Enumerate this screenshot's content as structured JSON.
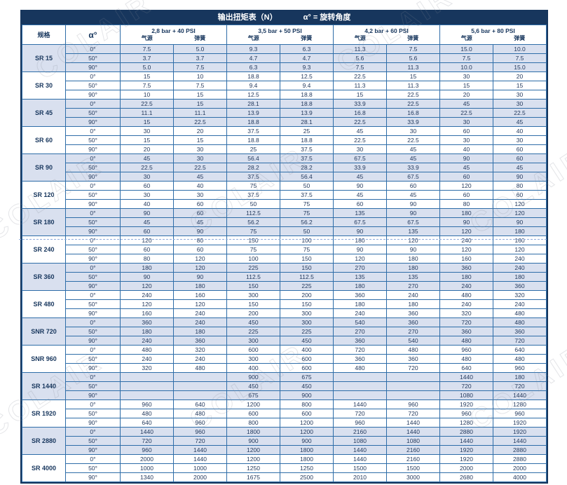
{
  "header": {
    "title": "输出扭矩表（N）",
    "subtitle": "α° = 旋转角度"
  },
  "table": {
    "spec_header": "规格",
    "alpha_header": "α°",
    "groups": [
      {
        "label": "2,8 bar + 40 PSI",
        "air": "气源",
        "spring": "弹簧"
      },
      {
        "label": "3,5 bar + 50 PSI",
        "air": "气源",
        "spring": "弹簧"
      },
      {
        "label": "4,2 bar + 60 PSI",
        "air": "气源",
        "spring": "弹簧"
      },
      {
        "label": "5,6 bar + 80 PSI",
        "air": "气源",
        "spring": "弹簧"
      }
    ],
    "rows": [
      {
        "spec": "SR 15",
        "shaded": true,
        "angles": [
          {
            "angle": "0°",
            "values": [
              "7.5",
              "5.0",
              "9.3",
              "6.3",
              "11.3",
              "7.5",
              "15.0",
              "10.0"
            ]
          },
          {
            "angle": "50°",
            "values": [
              "3.7",
              "3.7",
              "4.7",
              "4.7",
              "5.6",
              "5.6",
              "7.5",
              "7.5"
            ]
          },
          {
            "angle": "90°",
            "values": [
              "5.0",
              "7.5",
              "6.3",
              "9.3",
              "7.5",
              "11.3",
              "10.0",
              "15.0"
            ]
          }
        ]
      },
      {
        "spec": "SR 30",
        "shaded": false,
        "angles": [
          {
            "angle": "0°",
            "values": [
              "15",
              "10",
              "18.8",
              "12.5",
              "22.5",
              "15",
              "30",
              "20"
            ]
          },
          {
            "angle": "50°",
            "values": [
              "7.5",
              "7.5",
              "9.4",
              "9.4",
              "11.3",
              "11.3",
              "15",
              "15"
            ]
          },
          {
            "angle": "90°",
            "values": [
              "10",
              "15",
              "12.5",
              "18.8",
              "15",
              "22.5",
              "20",
              "30"
            ]
          }
        ]
      },
      {
        "spec": "SR 45",
        "shaded": true,
        "angles": [
          {
            "angle": "0°",
            "values": [
              "22.5",
              "15",
              "28.1",
              "18.8",
              "33.9",
              "22.5",
              "45",
              "30"
            ]
          },
          {
            "angle": "50°",
            "values": [
              "11.1",
              "11.1",
              "13.9",
              "13.9",
              "16.8",
              "16.8",
              "22.5",
              "22.5"
            ]
          },
          {
            "angle": "90°",
            "values": [
              "15",
              "22.5",
              "18.8",
              "28.1",
              "22.5",
              "33.9",
              "30",
              "45"
            ]
          }
        ]
      },
      {
        "spec": "SR 60",
        "shaded": false,
        "angles": [
          {
            "angle": "0°",
            "values": [
              "30",
              "20",
              "37.5",
              "25",
              "45",
              "30",
              "60",
              "40"
            ]
          },
          {
            "angle": "50°",
            "values": [
              "15",
              "15",
              "18.8",
              "18.8",
              "22.5",
              "22.5",
              "30",
              "30"
            ]
          },
          {
            "angle": "90°",
            "values": [
              "20",
              "30",
              "25",
              "37.5",
              "30",
              "45",
              "40",
              "60"
            ]
          }
        ]
      },
      {
        "spec": "SR 90",
        "shaded": true,
        "angles": [
          {
            "angle": "0°",
            "values": [
              "45",
              "30",
              "56.4",
              "37.5",
              "67.5",
              "45",
              "90",
              "60"
            ]
          },
          {
            "angle": "50°",
            "values": [
              "22.5",
              "22.5",
              "28.2",
              "28.2",
              "33.9",
              "33.9",
              "45",
              "45"
            ]
          },
          {
            "angle": "90°",
            "values": [
              "30",
              "45",
              "37.5",
              "56.4",
              "45",
              "67.5",
              "60",
              "90"
            ]
          }
        ]
      },
      {
        "spec": "SR 120",
        "shaded": false,
        "angles": [
          {
            "angle": "0°",
            "values": [
              "60",
              "40",
              "75",
              "50",
              "90",
              "60",
              "120",
              "80"
            ]
          },
          {
            "angle": "50°",
            "values": [
              "30",
              "30",
              "37.5",
              "37.5",
              "45",
              "45",
              "60",
              "60"
            ]
          },
          {
            "angle": "90°",
            "values": [
              "40",
              "60",
              "50",
              "75",
              "60",
              "90",
              "80",
              "120"
            ]
          }
        ]
      },
      {
        "spec": "SR 180",
        "shaded": true,
        "angles": [
          {
            "angle": "0°",
            "values": [
              "90",
              "60",
              "112.5",
              "75",
              "135",
              "90",
              "180",
              "120"
            ]
          },
          {
            "angle": "50°",
            "values": [
              "45",
              "45",
              "56.2",
              "56.2",
              "67.5",
              "67.5",
              "90",
              "90"
            ]
          },
          {
            "angle": "90°",
            "values": [
              "60",
              "90",
              "75",
              "50",
              "90",
              "135",
              "120",
              "180"
            ]
          }
        ]
      },
      {
        "spec": "SR 240",
        "shaded": false,
        "angles": [
          {
            "angle": "0°",
            "values": [
              "120",
              "80",
              "150",
              "100",
              "180",
              "120",
              "240",
              "160"
            ]
          },
          {
            "angle": "50°",
            "values": [
              "60",
              "60",
              "75",
              "75",
              "90",
              "90",
              "120",
              "120"
            ]
          },
          {
            "angle": "90°",
            "values": [
              "80",
              "120",
              "100",
              "150",
              "120",
              "180",
              "160",
              "240"
            ]
          }
        ]
      },
      {
        "spec": "SR 360",
        "shaded": true,
        "angles": [
          {
            "angle": "0°",
            "values": [
              "180",
              "120",
              "225",
              "150",
              "270",
              "180",
              "360",
              "240"
            ]
          },
          {
            "angle": "50°",
            "values": [
              "90",
              "90",
              "112.5",
              "112.5",
              "135",
              "135",
              "180",
              "180"
            ]
          },
          {
            "angle": "90°",
            "values": [
              "120",
              "180",
              "150",
              "225",
              "180",
              "270",
              "240",
              "360"
            ]
          }
        ]
      },
      {
        "spec": "SR 480",
        "shaded": false,
        "angles": [
          {
            "angle": "0°",
            "values": [
              "240",
              "160",
              "300",
              "200",
              "360",
              "240",
              "480",
              "320"
            ]
          },
          {
            "angle": "50°",
            "values": [
              "120",
              "120",
              "150",
              "150",
              "180",
              "180",
              "240",
              "240"
            ]
          },
          {
            "angle": "90°",
            "values": [
              "160",
              "240",
              "200",
              "300",
              "240",
              "360",
              "320",
              "480"
            ]
          }
        ]
      },
      {
        "spec": "SNR 720",
        "shaded": true,
        "angles": [
          {
            "angle": "0°",
            "values": [
              "360",
              "240",
              "450",
              "300",
              "540",
              "360",
              "720",
              "480"
            ]
          },
          {
            "angle": "50°",
            "values": [
              "180",
              "180",
              "225",
              "225",
              "270",
              "270",
              "360",
              "360"
            ]
          },
          {
            "angle": "90°",
            "values": [
              "240",
              "360",
              "300",
              "450",
              "360",
              "540",
              "480",
              "720"
            ]
          }
        ]
      },
      {
        "spec": "SNR 960",
        "shaded": false,
        "angles": [
          {
            "angle": "0°",
            "values": [
              "480",
              "320",
              "600",
              "400",
              "720",
              "480",
              "960",
              "640"
            ]
          },
          {
            "angle": "50°",
            "values": [
              "240",
              "240",
              "300",
              "600",
              "360",
              "360",
              "480",
              "480"
            ]
          },
          {
            "angle": "90°",
            "values": [
              "320",
              "480",
              "400",
              "600",
              "480",
              "720",
              "640",
              "960"
            ]
          }
        ]
      },
      {
        "spec": "SR 1440",
        "shaded": true,
        "angles": [
          {
            "angle": "0°",
            "values": [
              "",
              "",
              "900",
              "675",
              "",
              "",
              "1440",
              "180"
            ]
          },
          {
            "angle": "50°",
            "values": [
              "",
              "",
              "450",
              "450",
              "",
              "",
              "720",
              "720"
            ]
          },
          {
            "angle": "90°",
            "values": [
              "",
              "",
              "675",
              "900",
              "",
              "",
              "1080",
              "1440"
            ]
          }
        ]
      },
      {
        "spec": "SR 1920",
        "shaded": false,
        "angles": [
          {
            "angle": "0°",
            "values": [
              "960",
              "640",
              "1200",
              "800",
              "1440",
              "960",
              "1920",
              "1280"
            ]
          },
          {
            "angle": "50°",
            "values": [
              "480",
              "480",
              "600",
              "600",
              "720",
              "720",
              "960",
              "960"
            ]
          },
          {
            "angle": "90°",
            "values": [
              "640",
              "960",
              "800",
              "1200",
              "960",
              "1440",
              "1280",
              "1920"
            ]
          }
        ]
      },
      {
        "spec": "SR 2880",
        "shaded": true,
        "angles": [
          {
            "angle": "0°",
            "values": [
              "1440",
              "960",
              "1800",
              "1200",
              "2160",
              "1440",
              "2880",
              "1920"
            ]
          },
          {
            "angle": "50°",
            "values": [
              "720",
              "720",
              "900",
              "900",
              "1080",
              "1080",
              "1440",
              "1440"
            ]
          },
          {
            "angle": "90°",
            "values": [
              "960",
              "1440",
              "1200",
              "1800",
              "1440",
              "2160",
              "1920",
              "2880"
            ]
          }
        ]
      },
      {
        "spec": "SR 4000",
        "shaded": false,
        "angles": [
          {
            "angle": "0°",
            "values": [
              "2000",
              "1440",
              "1200",
              "1800",
              "1440",
              "2160",
              "1920",
              "2880"
            ]
          },
          {
            "angle": "50°",
            "values": [
              "1000",
              "1000",
              "1250",
              "1250",
              "1500",
              "1500",
              "2000",
              "2000"
            ]
          },
          {
            "angle": "90°",
            "values": [
              "1340",
              "2000",
              "1675",
              "2500",
              "2010",
              "3000",
              "2680",
              "4000"
            ]
          }
        ]
      }
    ]
  },
  "watermark": {
    "text": "COLAIR"
  },
  "colors": {
    "header_bg": "#17365D",
    "header_text": "#FFFFFF",
    "grid_border": "#2E6DA8",
    "block_border": "#1F4E79",
    "row_shade": "#D9E0EF",
    "cell_text": "#243A5E"
  }
}
